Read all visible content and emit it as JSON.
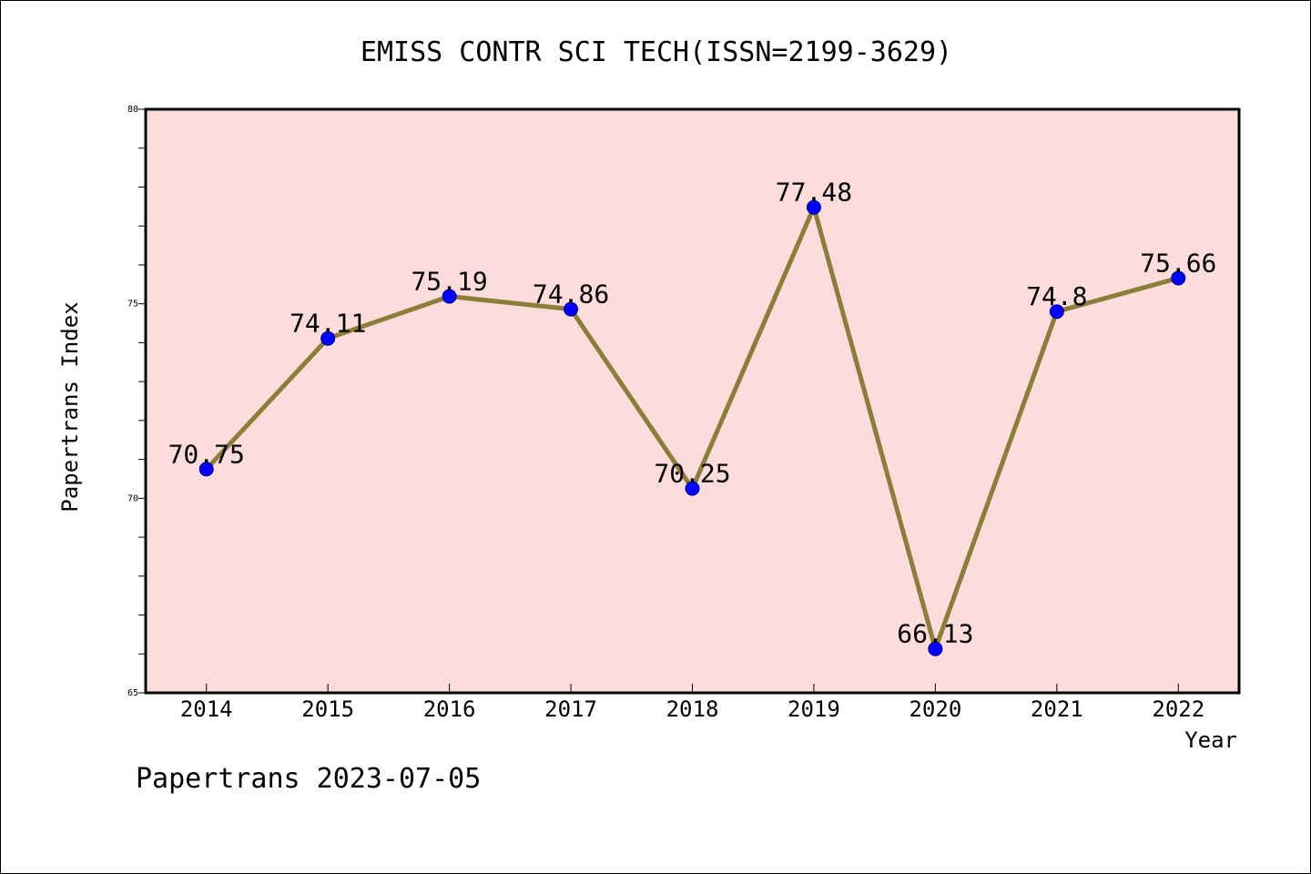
{
  "chart_data": {
    "type": "line",
    "title": "EMISS CONTR SCI TECH(ISSN=2199-3629)",
    "xlabel": "Year",
    "ylabel": "Papertrans Index",
    "categories": [
      "2014",
      "2015",
      "2016",
      "2017",
      "2018",
      "2019",
      "2020",
      "2021",
      "2022"
    ],
    "series": [
      {
        "name": "Papertrans Index",
        "values": [
          70.75,
          74.11,
          75.19,
          74.86,
          70.25,
          77.48,
          66.13,
          74.8,
          75.66
        ],
        "labels": [
          "70.75",
          "74.11",
          "75.19",
          "74.86",
          "70.25",
          "77.48",
          "66.13",
          "74.8",
          "75.66"
        ]
      }
    ],
    "ylim": [
      65,
      80
    ],
    "yticks": [
      "65",
      "70",
      "75",
      "80"
    ],
    "grid": false,
    "legend": "none"
  },
  "footer": {
    "text": "Papertrans 2023-07-05"
  },
  "colors": {
    "plot_background": "#fddcdb",
    "line": "#8b7d3a",
    "marker": "#0000ff",
    "marker_edge": "#00008b",
    "axis": "#000000",
    "page_background": "#ffffff"
  }
}
